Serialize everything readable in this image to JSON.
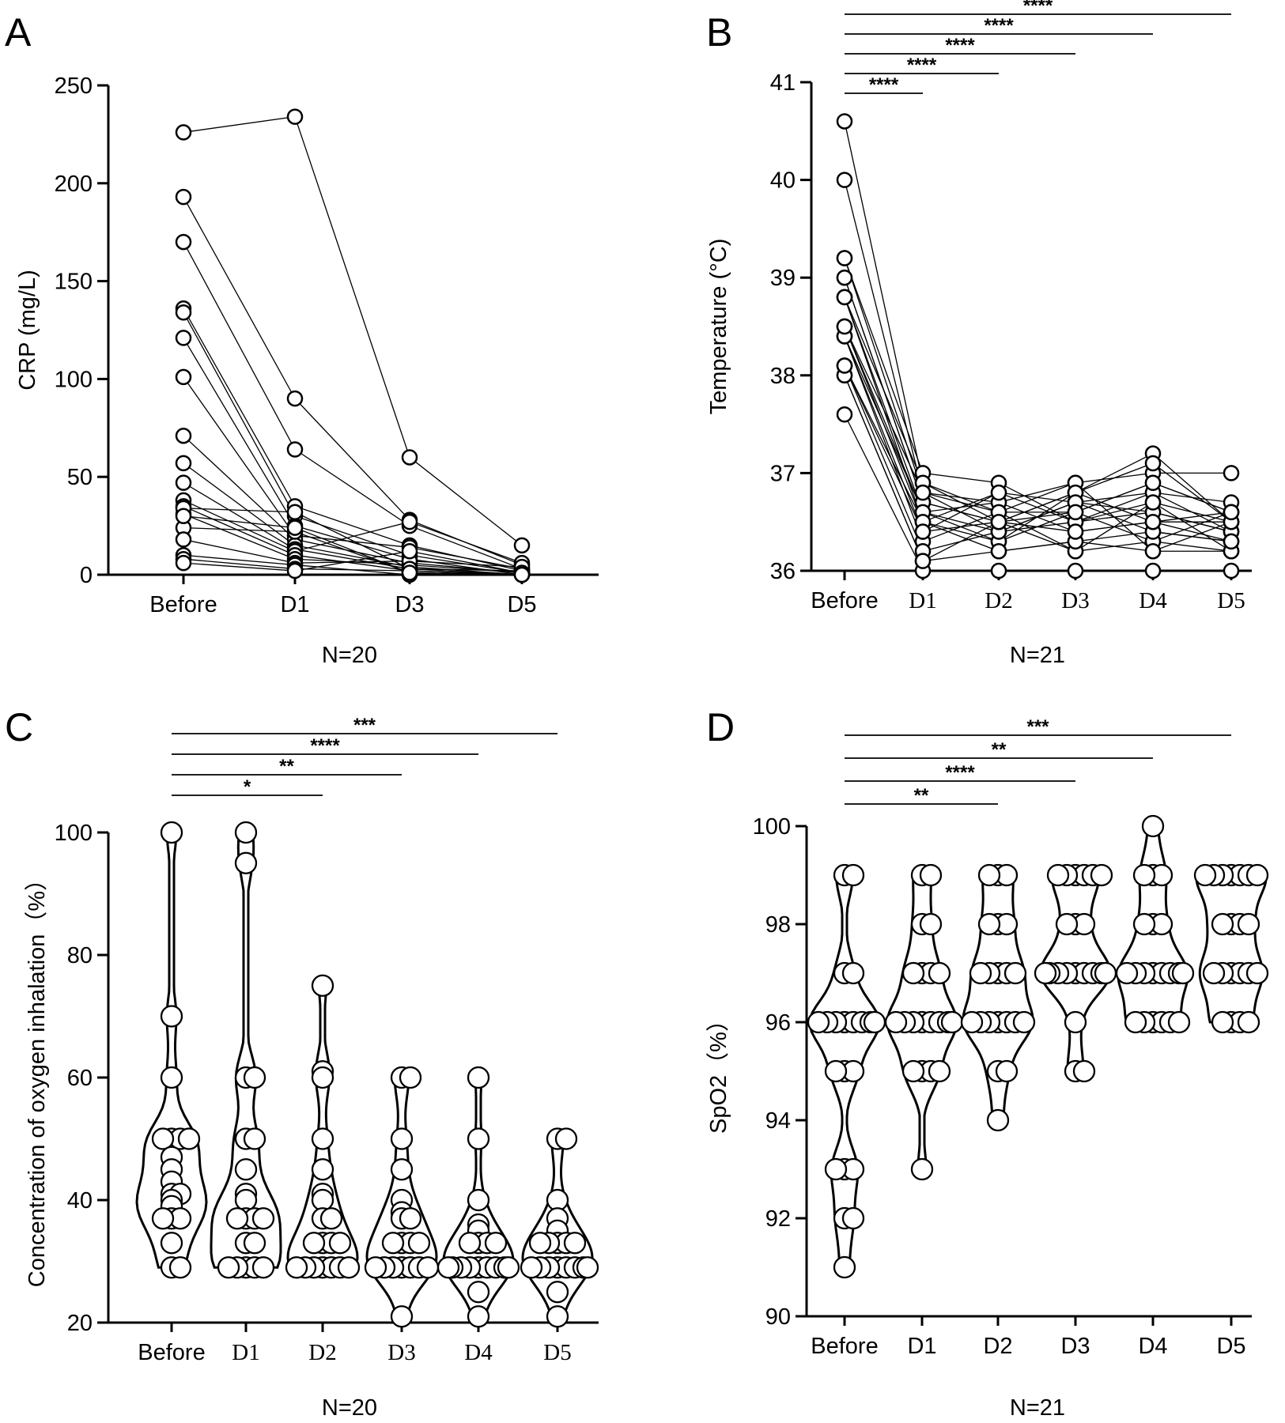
{
  "chart_data": [
    {
      "panel": "A",
      "type": "line",
      "ylabel": "CRP (mg/L)",
      "n_label": "N=20",
      "categories": [
        "Before",
        "D1",
        "D3",
        "D5"
      ],
      "yticks": [
        0,
        50,
        100,
        150,
        200,
        250
      ],
      "ylim": [
        0,
        250
      ],
      "grid": false,
      "legend": "none",
      "significance": [],
      "series": [
        {
          "values": [
            226,
            234,
            60,
            15
          ]
        },
        {
          "values": [
            193,
            90,
            28,
            5
          ]
        },
        {
          "values": [
            170,
            64,
            25,
            3
          ]
        },
        {
          "values": [
            136,
            35,
            15,
            2
          ]
        },
        {
          "values": [
            134,
            30,
            10,
            1
          ]
        },
        {
          "values": [
            121,
            25,
            8,
            0
          ]
        },
        {
          "values": [
            101,
            20,
            14,
            3
          ]
        },
        {
          "values": [
            71,
            18,
            6,
            1
          ]
        },
        {
          "values": [
            57,
            15,
            4,
            0
          ]
        },
        {
          "values": [
            47,
            13,
            3,
            2
          ]
        },
        {
          "values": [
            38,
            12,
            27,
            6
          ]
        },
        {
          "values": [
            35,
            10,
            2,
            0
          ]
        },
        {
          "values": [
            31,
            8,
            5,
            1
          ]
        },
        {
          "values": [
            24,
            22,
            1,
            0
          ]
        },
        {
          "values": [
            18,
            6,
            7,
            4
          ]
        },
        {
          "values": [
            10,
            5,
            0,
            0
          ]
        },
        {
          "values": [
            8,
            3,
            2,
            0
          ]
        },
        {
          "values": [
            6,
            2,
            12,
            1
          ]
        },
        {
          "values": [
            34,
            32,
            3,
            0
          ]
        },
        {
          "values": [
            30,
            24,
            1,
            0
          ]
        }
      ]
    },
    {
      "panel": "B",
      "type": "line",
      "ylabel": "Temperature (°C)",
      "n_label": "N=21",
      "categories": [
        "Before",
        "D1",
        "D2",
        "D3",
        "D4",
        "D5"
      ],
      "yticks": [
        36,
        37,
        38,
        39,
        40,
        41
      ],
      "ylim": [
        36,
        41
      ],
      "grid": false,
      "legend": "none",
      "significance": [
        {
          "from": 0,
          "to": 1,
          "label": "****"
        },
        {
          "from": 0,
          "to": 2,
          "label": "****"
        },
        {
          "from": 0,
          "to": 3,
          "label": "****"
        },
        {
          "from": 0,
          "to": 4,
          "label": "****"
        },
        {
          "from": 0,
          "to": 5,
          "label": "****"
        }
      ],
      "series": [
        {
          "values": [
            40.6,
            36.9,
            36.5,
            36.8,
            37.2,
            36.5
          ]
        },
        {
          "values": [
            40.0,
            36.8,
            36.7,
            36.9,
            37.0,
            37.0
          ]
        },
        {
          "values": [
            39.2,
            37.0,
            36.9,
            36.5,
            36.8,
            36.7
          ]
        },
        {
          "values": [
            39.0,
            36.7,
            36.5,
            36.6,
            36.9,
            36.6
          ]
        },
        {
          "values": [
            38.8,
            36.5,
            36.8,
            36.7,
            36.6,
            36.4
          ]
        },
        {
          "values": [
            38.5,
            36.6,
            36.3,
            36.8,
            36.5,
            36.5
          ]
        },
        {
          "values": [
            38.4,
            36.3,
            36.6,
            36.2,
            36.3,
            36.6
          ]
        },
        {
          "values": [
            38.1,
            36.2,
            36.4,
            36.5,
            36.7,
            36.2
          ]
        },
        {
          "values": [
            38.0,
            36.1,
            36.2,
            36.3,
            36.4,
            36.3
          ]
        },
        {
          "values": [
            37.6,
            36.0,
            36.0,
            36.0,
            36.0,
            36.0
          ]
        },
        {
          "values": [
            38.8,
            36.9,
            36.6,
            36.9,
            36.2,
            36.5
          ]
        },
        {
          "values": [
            38.5,
            36.8,
            36.4,
            36.7,
            36.8,
            36.4
          ]
        },
        {
          "values": [
            38.4,
            36.6,
            36.7,
            36.4,
            36.5,
            36.6
          ]
        },
        {
          "values": [
            39.0,
            36.7,
            36.5,
            36.8,
            37.1,
            36.5
          ]
        },
        {
          "values": [
            38.1,
            36.5,
            36.3,
            36.6,
            36.3,
            36.2
          ]
        },
        {
          "values": [
            38.4,
            36.4,
            36.8,
            36.5,
            36.6,
            36.4
          ]
        },
        {
          "values": [
            38.8,
            36.6,
            36.4,
            36.7,
            36.4,
            36.3
          ]
        },
        {
          "values": [
            38.0,
            36.1,
            36.5,
            36.2,
            36.7,
            36.5
          ]
        },
        {
          "values": [
            39.2,
            36.8,
            36.6,
            36.6,
            36.9,
            36.6
          ]
        },
        {
          "values": [
            38.5,
            36.5,
            36.2,
            36.3,
            36.2,
            36.2
          ]
        },
        {
          "values": [
            38.1,
            36.4,
            36.5,
            36.4,
            36.5,
            36.3
          ]
        }
      ]
    },
    {
      "panel": "C",
      "type": "scatter",
      "ylabel": "Concentration of oxygen inhalation（%）",
      "n_label": "N=20",
      "categories": [
        "Before",
        "D1",
        "D2",
        "D3",
        "D4",
        "D5"
      ],
      "yticks": [
        20,
        40,
        60,
        80,
        100
      ],
      "ylim": [
        20,
        100
      ],
      "grid": false,
      "legend": "none",
      "significance": [
        {
          "from": 0,
          "to": 2,
          "label": "*"
        },
        {
          "from": 0,
          "to": 3,
          "label": "**"
        },
        {
          "from": 0,
          "to": 4,
          "label": "****"
        },
        {
          "from": 0,
          "to": 5,
          "label": "***"
        }
      ],
      "groups": [
        {
          "values": [
            100,
            70,
            60,
            50,
            50,
            50,
            50,
            47,
            45,
            43,
            41,
            41,
            40,
            39,
            37,
            37,
            37,
            33,
            29,
            29
          ]
        },
        {
          "values": [
            100,
            95,
            60,
            60,
            50,
            50,
            45,
            41,
            40,
            37,
            37,
            37,
            37,
            33,
            33,
            29,
            29,
            29,
            29,
            29
          ]
        },
        {
          "values": [
            75,
            61,
            60,
            50,
            45,
            41,
            40,
            37,
            37,
            33,
            33,
            33,
            33,
            29,
            29,
            29,
            29,
            29,
            29,
            29
          ]
        },
        {
          "values": [
            60,
            60,
            50,
            45,
            40,
            38,
            37,
            37,
            33,
            33,
            33,
            33,
            29,
            29,
            29,
            29,
            29,
            29,
            29,
            21
          ]
        },
        {
          "values": [
            60,
            50,
            40,
            36,
            35,
            33,
            33,
            33,
            33,
            29,
            29,
            29,
            29,
            29,
            29,
            29,
            29,
            25,
            21,
            29
          ]
        },
        {
          "values": [
            50,
            50,
            40,
            37,
            35,
            33,
            33,
            33,
            33,
            33,
            29,
            29,
            29,
            29,
            29,
            29,
            29,
            25,
            21,
            29
          ]
        }
      ]
    },
    {
      "panel": "D",
      "type": "scatter",
      "ylabel": "SpO2（%）",
      "n_label": "N=21",
      "categories": [
        "Before",
        "D1",
        "D2",
        "D3",
        "D4",
        "D5"
      ],
      "yticks": [
        90,
        92,
        94,
        96,
        98,
        100
      ],
      "ylim": [
        90,
        100
      ],
      "grid": false,
      "legend": "none",
      "significance": [
        {
          "from": 0,
          "to": 2,
          "label": "**"
        },
        {
          "from": 0,
          "to": 3,
          "label": "****"
        },
        {
          "from": 0,
          "to": 4,
          "label": "**"
        },
        {
          "from": 0,
          "to": 5,
          "label": "***"
        }
      ],
      "groups": [
        {
          "values": [
            99,
            99,
            97,
            96,
            96,
            96,
            96,
            96,
            95,
            95,
            93,
            93,
            93,
            92,
            92,
            91,
            96,
            96,
            97,
            96,
            95
          ]
        },
        {
          "values": [
            99,
            99,
            98,
            98,
            97,
            97,
            97,
            96,
            96,
            96,
            96,
            96,
            96,
            95,
            95,
            95,
            95,
            93,
            97,
            96,
            96
          ]
        },
        {
          "values": [
            99,
            99,
            99,
            98,
            98,
            97,
            97,
            97,
            97,
            96,
            96,
            96,
            96,
            96,
            95,
            95,
            94,
            97,
            96,
            98,
            96
          ]
        },
        {
          "values": [
            99,
            99,
            99,
            99,
            99,
            98,
            98,
            97,
            97,
            97,
            97,
            97,
            97,
            97,
            97,
            96,
            95,
            95,
            97,
            98,
            99
          ]
        },
        {
          "values": [
            100,
            99,
            99,
            98,
            98,
            97,
            97,
            97,
            97,
            97,
            97,
            96,
            96,
            96,
            96,
            96,
            97,
            98,
            99,
            97,
            96
          ]
        },
        {
          "values": [
            99,
            99,
            99,
            99,
            99,
            99,
            98,
            98,
            98,
            97,
            97,
            97,
            97,
            97,
            96,
            96,
            96,
            96,
            98,
            97,
            99
          ]
        }
      ]
    }
  ]
}
